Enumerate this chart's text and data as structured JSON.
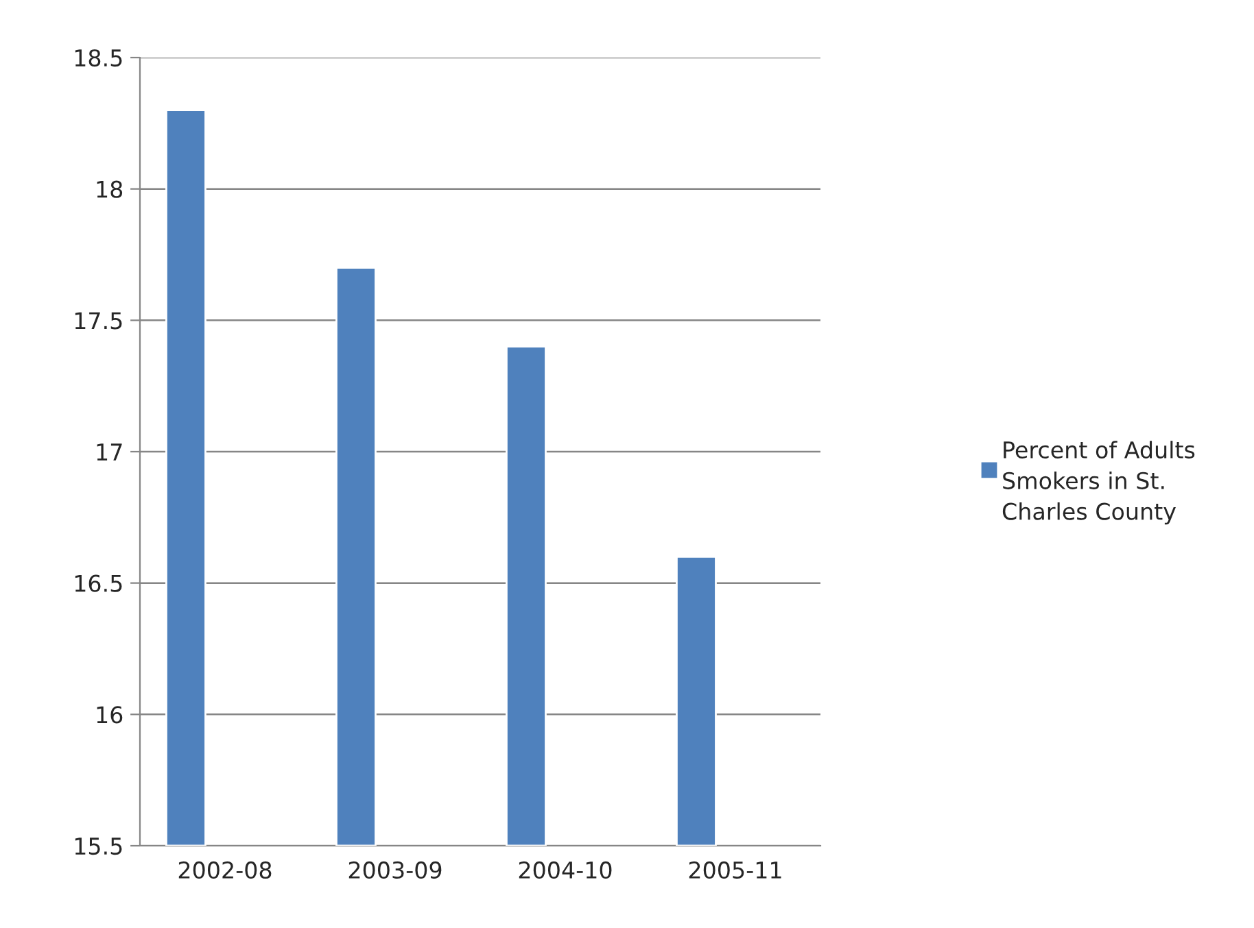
{
  "chart_data": {
    "type": "bar",
    "categories": [
      "2002-08",
      "2003-09",
      "2004-10",
      "2005-11"
    ],
    "series": [
      {
        "name": "Percent of Adults Smokers in St. Charles County",
        "color": "#4f81bd",
        "values": [
          18.3,
          17.7,
          17.4,
          16.6
        ]
      }
    ],
    "ylim": [
      15.5,
      18.5
    ],
    "yticks": [
      15.5,
      16,
      16.5,
      17,
      17.5,
      18,
      18.5
    ],
    "grid": "y",
    "legend": "right"
  }
}
